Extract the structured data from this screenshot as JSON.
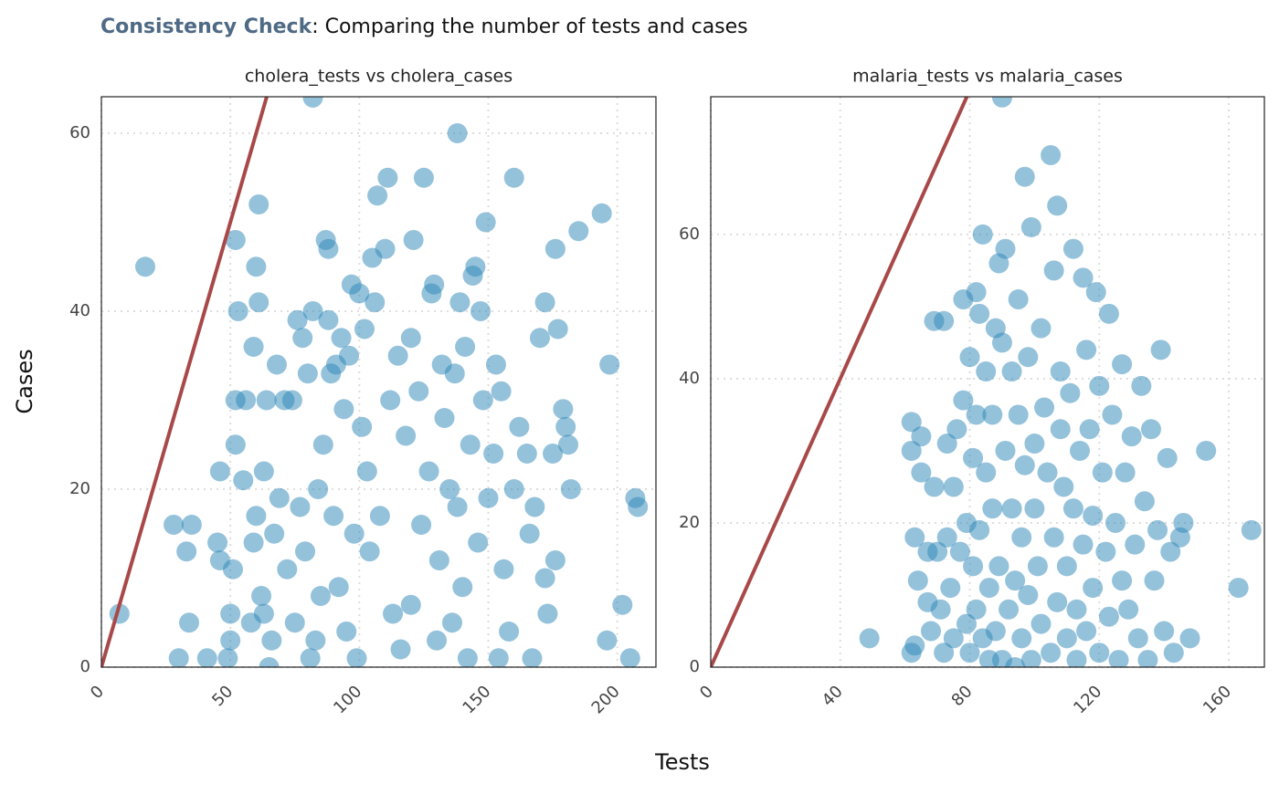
{
  "title_emphasis": "Consistency Check",
  "title": ": Comparing the number of tests and cases",
  "x_label": "Tests",
  "y_label": "Cases",
  "chart_data": [
    {
      "type": "scatter",
      "title": "cholera_tests vs cholera_cases",
      "color": "#2b86b8",
      "xlim": [
        0,
        215
      ],
      "ylim": [
        0,
        64.1
      ],
      "xticks": [
        0,
        50,
        100,
        150,
        200
      ],
      "yticks": [
        0,
        20,
        40,
        60
      ],
      "grid": true,
      "x": [
        7,
        17,
        28,
        30,
        33,
        34,
        35,
        41,
        45,
        46,
        46,
        49,
        50,
        50,
        51,
        52,
        52,
        53,
        52,
        56,
        55,
        58,
        59,
        59,
        60,
        60,
        61,
        61,
        62,
        63,
        63,
        64,
        65,
        66,
        67,
        68,
        69,
        71,
        72,
        74,
        75,
        76,
        77,
        78,
        79,
        80,
        81,
        82,
        82,
        83,
        84,
        85,
        86,
        87,
        88,
        88,
        89,
        90,
        91,
        92,
        93,
        94,
        95,
        96,
        97,
        98,
        99,
        100,
        101,
        102,
        103,
        104,
        105,
        106,
        107,
        108,
        110,
        111,
        112,
        113,
        115,
        116,
        118,
        120,
        120,
        121,
        123,
        124,
        125,
        127,
        128,
        129,
        130,
        131,
        132,
        133,
        138,
        135,
        136,
        137,
        138,
        139,
        140,
        141,
        142,
        143,
        144,
        145,
        146,
        147,
        148,
        149,
        150,
        160,
        152,
        153,
        154,
        155,
        156,
        158,
        160,
        162,
        176,
        165,
        166,
        167,
        168,
        170,
        172,
        172,
        173,
        175,
        176,
        177,
        185,
        179,
        180,
        181,
        182,
        194,
        197,
        196,
        202,
        205,
        207,
        208
      ],
      "values": [
        6,
        45,
        16,
        1,
        13,
        5,
        16,
        1,
        14,
        12,
        22,
        1,
        6,
        3,
        11,
        48,
        25,
        40,
        30,
        30,
        21,
        5,
        36,
        14,
        17,
        45,
        41,
        52,
        8,
        6,
        22,
        30,
        0,
        3,
        15,
        34,
        19,
        30,
        11,
        30,
        5,
        39,
        18,
        37,
        13,
        33,
        1,
        64,
        40,
        3,
        20,
        8,
        25,
        48,
        47,
        39,
        33,
        17,
        34,
        9,
        37,
        29,
        4,
        35,
        43,
        15,
        1,
        42,
        27,
        38,
        22,
        13,
        46,
        41,
        53,
        17,
        47,
        55,
        30,
        6,
        35,
        2,
        26,
        7,
        37,
        48,
        31,
        16,
        55,
        22,
        42,
        43,
        3,
        12,
        34,
        28,
        60,
        20,
        5,
        33,
        18,
        41,
        9,
        36,
        1,
        25,
        44,
        45,
        14,
        40,
        30,
        50,
        19,
        55,
        24,
        34,
        1,
        31,
        11,
        4,
        20,
        27,
        47,
        24,
        15,
        1,
        18,
        37,
        41,
        10,
        6,
        24,
        12,
        38,
        49,
        29,
        27,
        25,
        20,
        51,
        34,
        3,
        7,
        1,
        19,
        18
      ]
    },
    {
      "type": "scatter",
      "title": "malaria_tests vs malaria_cases",
      "color": "#2b86b8",
      "xlim": [
        0,
        171
      ],
      "ylim": [
        0,
        79.1
      ],
      "xticks": [
        0,
        40,
        80,
        120,
        160
      ],
      "yticks": [
        0,
        20,
        40,
        60
      ],
      "grid": true,
      "x": [
        49,
        62,
        62,
        62,
        63,
        63,
        64,
        65,
        65,
        67,
        67,
        68,
        69,
        69,
        70,
        71,
        72,
        72,
        73,
        73,
        74,
        75,
        75,
        76,
        77,
        78,
        78,
        79,
        79,
        80,
        80,
        81,
        81,
        82,
        82,
        82,
        83,
        83,
        84,
        84,
        85,
        85,
        86,
        86,
        87,
        87,
        88,
        88,
        89,
        89,
        90,
        90,
        90,
        91,
        91,
        92,
        93,
        93,
        94,
        94,
        95,
        95,
        96,
        96,
        97,
        97,
        98,
        98,
        99,
        99,
        100,
        100,
        101,
        102,
        102,
        103,
        104,
        105,
        105,
        106,
        106,
        107,
        107,
        108,
        108,
        109,
        110,
        110,
        111,
        112,
        112,
        113,
        113,
        114,
        115,
        115,
        116,
        116,
        117,
        118,
        118,
        119,
        120,
        120,
        121,
        122,
        123,
        123,
        124,
        125,
        126,
        127,
        127,
        128,
        129,
        130,
        131,
        132,
        133,
        134,
        135,
        136,
        137,
        138,
        139,
        140,
        141,
        142,
        143,
        145,
        146,
        148,
        153,
        163,
        167
      ],
      "values": [
        4,
        2,
        30,
        34,
        3,
        18,
        12,
        32,
        27,
        9,
        16,
        5,
        48,
        25,
        16,
        8,
        2,
        48,
        31,
        18,
        11,
        25,
        4,
        33,
        16,
        51,
        37,
        20,
        6,
        43,
        2,
        29,
        14,
        52,
        8,
        35,
        49,
        19,
        60,
        4,
        41,
        27,
        11,
        1,
        35,
        22,
        47,
        5,
        56,
        14,
        79,
        45,
        1,
        58,
        30,
        8,
        41,
        22,
        12,
        0,
        51,
        35,
        4,
        18,
        68,
        28,
        43,
        10,
        61,
        1,
        31,
        22,
        14,
        47,
        6,
        36,
        27,
        71,
        2,
        55,
        18,
        64,
        9,
        41,
        33,
        25,
        4,
        14,
        38,
        58,
        22,
        8,
        1,
        30,
        54,
        17,
        44,
        5,
        33,
        21,
        11,
        52,
        39,
        2,
        27,
        16,
        49,
        7,
        35,
        20,
        1,
        42,
        12,
        27,
        8,
        32,
        17,
        4,
        39,
        23,
        1,
        33,
        12,
        19,
        44,
        5,
        29,
        16,
        2,
        18,
        20,
        4,
        30,
        11,
        19
      ]
    }
  ]
}
